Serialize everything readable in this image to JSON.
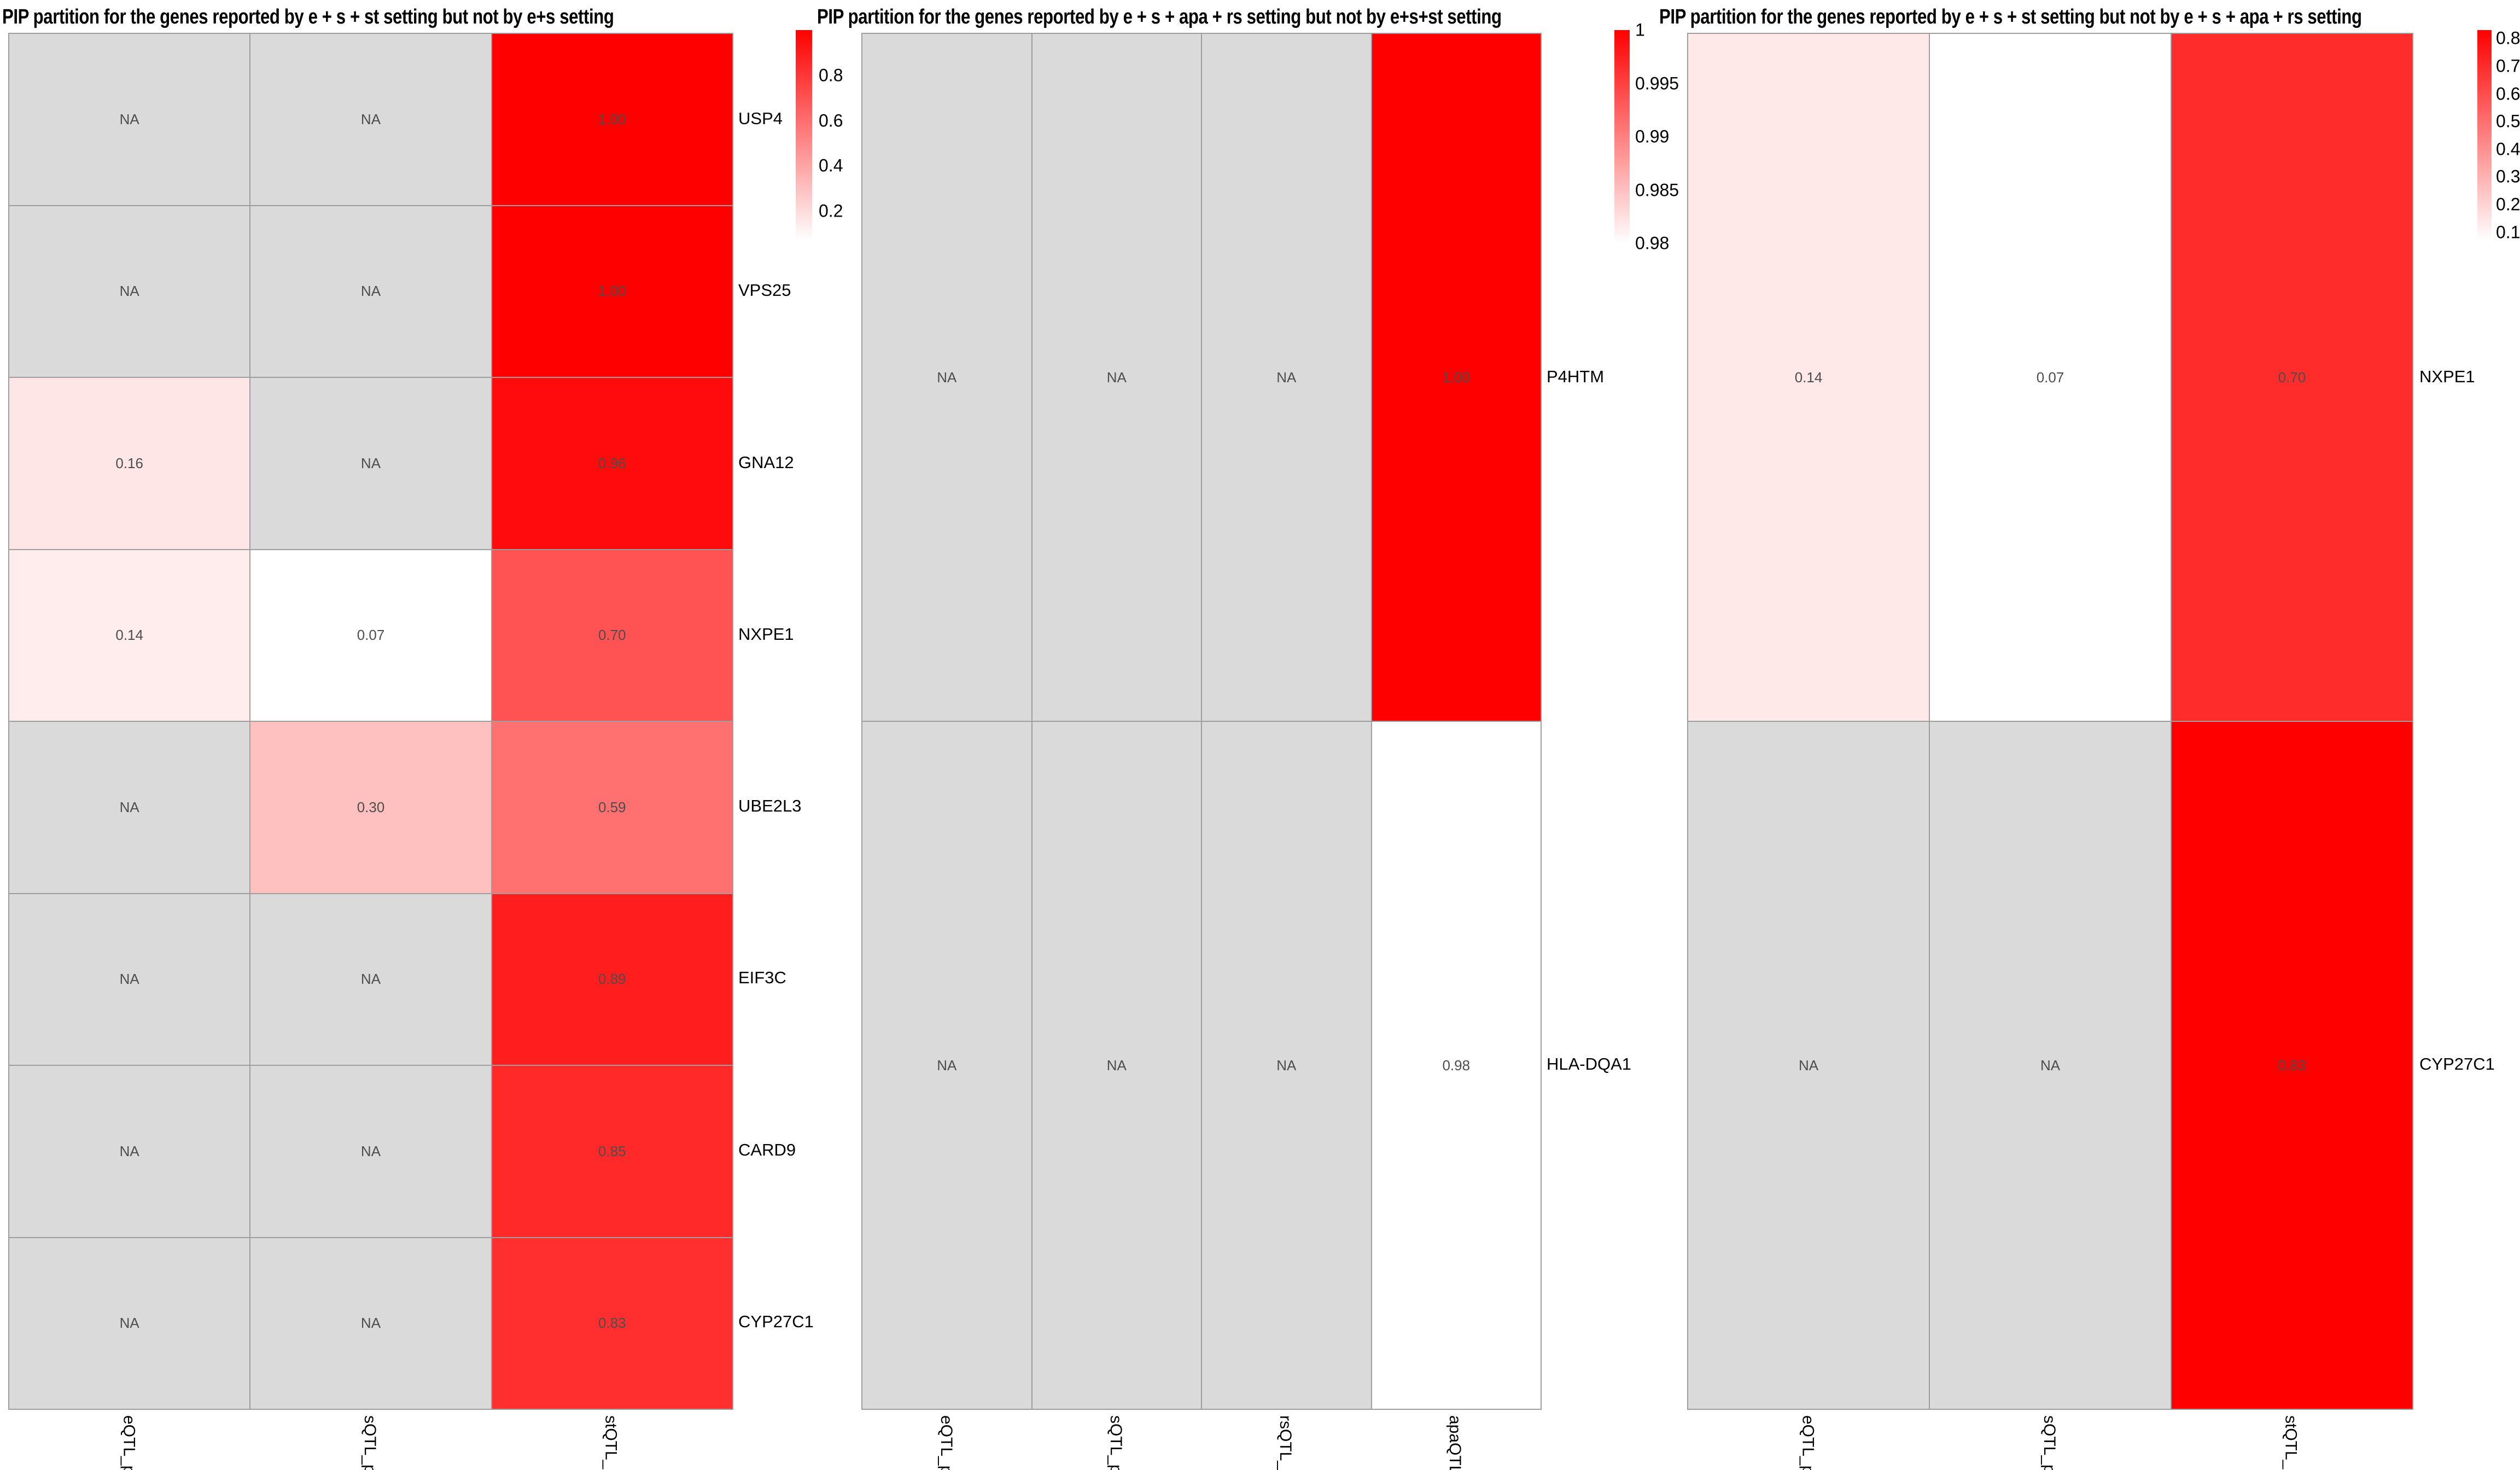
{
  "figure": {
    "background": "#ffffff",
    "na_color": "#dadada",
    "grid_color": "#9e9e9e",
    "value_text_color": "#4d4d4d",
    "scale_low": "#ffffff",
    "scale_high": "#ff0000",
    "na_label": "NA"
  },
  "chart_data": [
    {
      "type": "heatmap",
      "title": "PIP partition for the genes reported by e + s + st setting but not by e+s setting",
      "columns": [
        "eQTL_pip",
        "sQTL_pip",
        "stQTL_pip"
      ],
      "rows": [
        "USP4",
        "VPS25",
        "GNA12",
        "NXPE1",
        "UBE2L3",
        "EIF3C",
        "CARD9",
        "CYP27C1"
      ],
      "values": [
        [
          null,
          null,
          1.0
        ],
        [
          null,
          null,
          1.0
        ],
        [
          0.16,
          null,
          0.96
        ],
        [
          0.14,
          0.07,
          0.7
        ],
        [
          null,
          0.3,
          0.59
        ],
        [
          null,
          null,
          0.89
        ],
        [
          null,
          null,
          0.85
        ],
        [
          null,
          null,
          0.83
        ]
      ],
      "scale_min": 0.07,
      "scale_max": 1.0,
      "legend_ticks": [
        "0.8",
        "0.6",
        "0.4",
        "0.2"
      ],
      "legend_position": "right",
      "grid": true
    },
    {
      "type": "heatmap",
      "title": "PIP partition for the genes reported by e + s + apa + rs setting but not by e+s+st setting",
      "columns": [
        "eQTL_pip",
        "sQTL_pip",
        "rsQTL_pip",
        "apaQTL_pip"
      ],
      "rows": [
        "P4HTM",
        "HLA-DQA1"
      ],
      "values": [
        [
          null,
          null,
          null,
          1.0
        ],
        [
          null,
          null,
          null,
          0.98
        ]
      ],
      "scale_min": 0.98,
      "scale_max": 1.0,
      "legend_ticks": [
        "1",
        "0.995",
        "0.99",
        "0.985",
        "0.98"
      ],
      "legend_position": "right",
      "grid": true
    },
    {
      "type": "heatmap",
      "title": "PIP partition for the genes reported by e + s + st setting but not by e + s + apa + rs setting",
      "columns": [
        "eQTL_pip",
        "sQTL_pip",
        "stQTL_pip"
      ],
      "rows": [
        "NXPE1",
        "CYP27C1"
      ],
      "values": [
        [
          0.14,
          0.07,
          0.7
        ],
        [
          null,
          null,
          0.83
        ]
      ],
      "scale_min": 0.07,
      "scale_max": 0.83,
      "legend_ticks": [
        "0.8",
        "0.7",
        "0.6",
        "0.5",
        "0.4",
        "0.3",
        "0.2",
        "0.1"
      ],
      "legend_position": "right",
      "grid": true
    }
  ]
}
